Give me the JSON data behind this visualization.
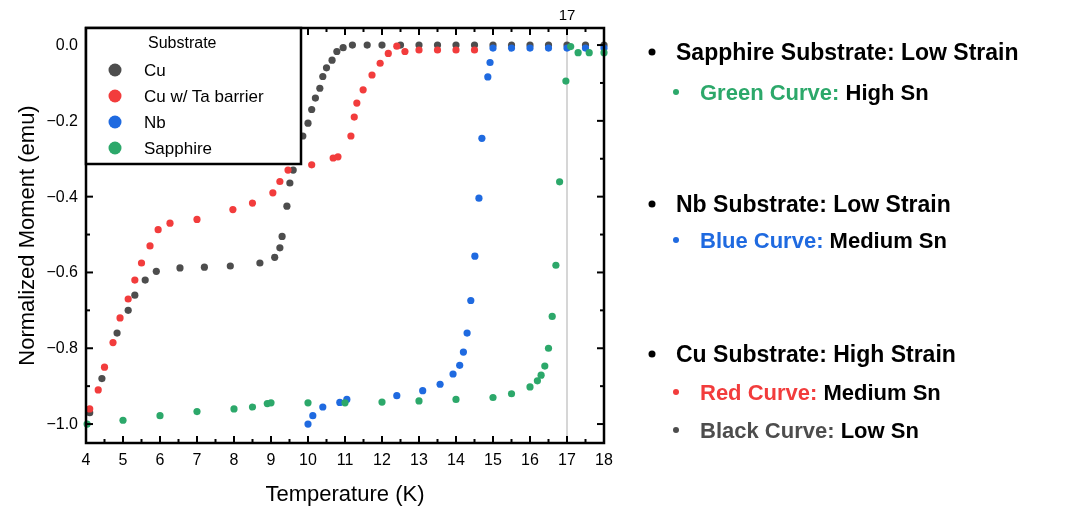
{
  "chart_data": {
    "type": "scatter",
    "xlabel": "Temperature (K)",
    "ylabel": "Normalized Moment (emu)",
    "legend_title": "Substrate",
    "legend": "top left",
    "marker": "circle",
    "grid": false,
    "xlim": [
      4,
      18
    ],
    "ylim": [
      -1.05,
      0.045
    ],
    "xticks": [
      4,
      {
        "value": 4.5,
        "label": null
      },
      5,
      {
        "value": 5.5,
        "label": null
      },
      6,
      {
        "value": 6.5,
        "label": null
      },
      7,
      {
        "value": 7.5,
        "label": null
      },
      8,
      {
        "value": 8.5,
        "label": null
      },
      9,
      {
        "value": 9.5,
        "label": null
      },
      10,
      {
        "value": 10.5,
        "label": null
      },
      11,
      {
        "value": 11.5,
        "label": null
      },
      12,
      {
        "value": 12.5,
        "label": null
      },
      13,
      {
        "value": 13.5,
        "label": null
      },
      14,
      {
        "value": 14.5,
        "label": null
      },
      15,
      {
        "value": 15.5,
        "label": null
      },
      16,
      {
        "value": 16.5,
        "label": null
      },
      17,
      {
        "value": 17.5,
        "label": null
      },
      18
    ],
    "yticks": [
      {
        "value": -1.0,
        "label": "−1.0"
      },
      {
        "value": -0.9,
        "label": null
      },
      {
        "value": -0.8,
        "label": "−0.8"
      },
      {
        "value": -0.7,
        "label": null
      },
      {
        "value": -0.6,
        "label": "−0.6"
      },
      {
        "value": -0.5,
        "label": null
      },
      {
        "value": -0.4,
        "label": "−0.4"
      },
      {
        "value": -0.3,
        "label": null
      },
      {
        "value": -0.2,
        "label": "−0.2"
      },
      {
        "value": -0.1,
        "label": null
      },
      {
        "value": 0.0,
        "label": "0.0"
      }
    ],
    "ref_lines": [
      {
        "axis": "x",
        "value": 17,
        "label": "17",
        "color": "#c8c8c8"
      }
    ],
    "series": [
      {
        "name": "Cu",
        "color": "#4d4d4d",
        "x": [
          4.1,
          4.43,
          4.84,
          5.14,
          5.32,
          5.6,
          5.9,
          6.54,
          7.2,
          7.9,
          8.7,
          9.1,
          9.24,
          9.3,
          9.43,
          9.51,
          9.6,
          9.86,
          10.0,
          10.1,
          10.2,
          10.32,
          10.4,
          10.5,
          10.65,
          10.78,
          10.95,
          11.2,
          11.6,
          12.0,
          12.5,
          13.0,
          13.5,
          14.0,
          14.5,
          15.0,
          15.5,
          16.0,
          16.5,
          17.0,
          17.5,
          18.0
        ],
        "values": [
          -0.97,
          -0.88,
          -0.76,
          -0.7,
          -0.66,
          -0.62,
          -0.597,
          -0.588,
          -0.586,
          -0.583,
          -0.575,
          -0.56,
          -0.535,
          -0.505,
          -0.425,
          -0.364,
          -0.33,
          -0.24,
          -0.206,
          -0.17,
          -0.14,
          -0.114,
          -0.083,
          -0.06,
          -0.04,
          -0.017,
          -0.007,
          0.0,
          0.0,
          0.0,
          0.0,
          0.0,
          0.0,
          0.0,
          0.0,
          0.0,
          0.0,
          0.0,
          0.0,
          0.0,
          0.0,
          0.0
        ]
      },
      {
        "name": "Cu w/ Ta barrier",
        "color": "#f23c3c",
        "x": [
          4.1,
          4.33,
          4.5,
          4.73,
          4.92,
          5.14,
          5.32,
          5.5,
          5.73,
          5.95,
          6.27,
          7.0,
          7.97,
          8.5,
          9.05,
          9.24,
          9.46,
          10.1,
          10.68,
          10.81,
          11.16,
          11.25,
          11.32,
          11.49,
          11.73,
          11.95,
          12.17,
          12.4,
          12.62,
          13.0,
          13.5,
          14.0,
          14.5
        ],
        "values": [
          -0.96,
          -0.91,
          -0.85,
          -0.785,
          -0.72,
          -0.67,
          -0.62,
          -0.575,
          -0.53,
          -0.487,
          -0.47,
          -0.46,
          -0.434,
          -0.417,
          -0.39,
          -0.36,
          -0.33,
          -0.316,
          -0.298,
          -0.295,
          -0.24,
          -0.19,
          -0.153,
          -0.118,
          -0.079,
          -0.048,
          -0.022,
          -0.003,
          -0.017,
          -0.013,
          -0.013,
          -0.013,
          -0.013
        ]
      },
      {
        "name": "Nb",
        "color": "#1f6ae0",
        "x": [
          10.0,
          10.13,
          10.4,
          10.86,
          11.05,
          12.4,
          13.1,
          13.57,
          13.92,
          14.1,
          14.2,
          14.3,
          14.4,
          14.51,
          14.62,
          14.7,
          14.86,
          14.92,
          15.0,
          15.5,
          16.0,
          16.5,
          17.0,
          17.5,
          18.0
        ],
        "values": [
          -1.0,
          -0.978,
          -0.955,
          -0.943,
          -0.935,
          -0.925,
          -0.912,
          -0.895,
          -0.868,
          -0.845,
          -0.81,
          -0.76,
          -0.674,
          -0.557,
          -0.404,
          -0.246,
          -0.084,
          -0.046,
          -0.008,
          -0.008,
          -0.008,
          -0.008,
          -0.008,
          -0.008,
          -0.008
        ]
      },
      {
        "name": "Sapphire",
        "color": "#2ca86a",
        "x": [
          4.03,
          5.0,
          6.0,
          7.0,
          8.0,
          8.5,
          8.9,
          9.0,
          10.0,
          11.0,
          12.0,
          13.0,
          14.0,
          15.0,
          15.5,
          16.0,
          16.2,
          16.3,
          16.4,
          16.5,
          16.6,
          16.7,
          16.8,
          16.97,
          17.1,
          17.3,
          17.6,
          18.0
        ],
        "values": [
          -1.0,
          -0.99,
          -0.978,
          -0.967,
          -0.96,
          -0.955,
          -0.946,
          -0.944,
          -0.944,
          -0.944,
          -0.942,
          -0.939,
          -0.935,
          -0.93,
          -0.92,
          -0.902,
          -0.886,
          -0.871,
          -0.847,
          -0.8,
          -0.716,
          -0.581,
          -0.361,
          -0.095,
          -0.004,
          -0.02,
          -0.02,
          -0.02
        ]
      }
    ],
    "annotations": [
      "Sapphire Substrate: Low Strain",
      "Green Curve: High Sn",
      "Nb Substrate: Low Strain",
      "Blue Curve: Medium Sn",
      "Cu Substrate: High Strain",
      "Red Curve: Medium Sn",
      "Black Curve: Low Sn"
    ]
  }
}
